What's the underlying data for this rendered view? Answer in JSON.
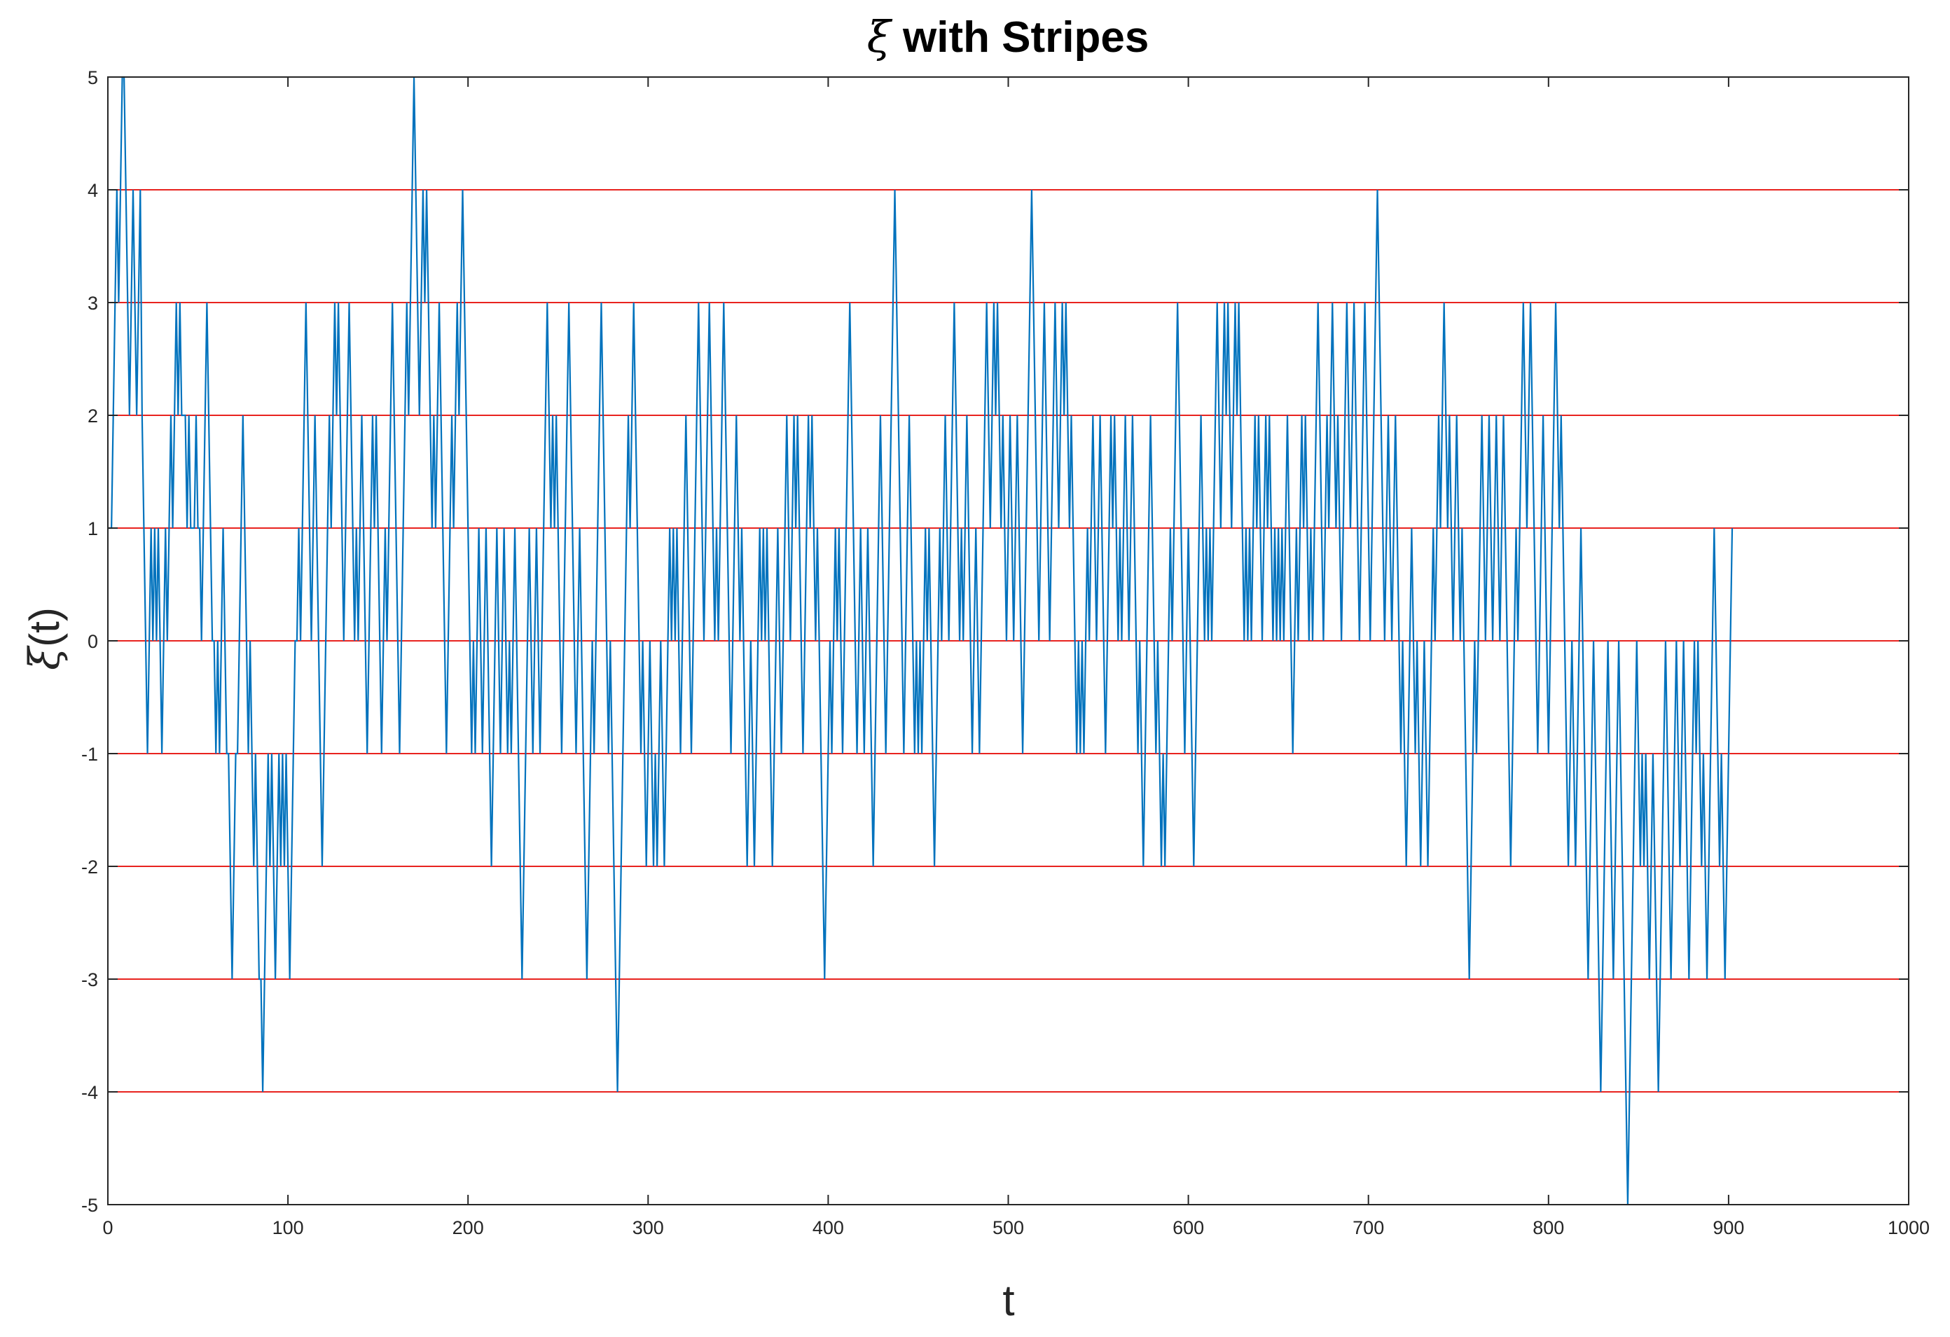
{
  "chart_data": {
    "type": "line",
    "title_symbol": "ξ",
    "title_rest": " with Stripes",
    "xlabel": "t",
    "ylabel_symbol": "ξ",
    "ylabel_rest": "(t)",
    "xlim": [
      0,
      1000
    ],
    "ylim": [
      -5,
      5
    ],
    "x_ticks": [
      0,
      100,
      200,
      300,
      400,
      500,
      600,
      700,
      800,
      900,
      1000
    ],
    "y_ticks": [
      -5,
      -4,
      -3,
      -2,
      -1,
      0,
      1,
      2,
      3,
      4,
      5
    ],
    "stripes": [
      -4,
      -3,
      -2,
      -1,
      0,
      1,
      2,
      3,
      4
    ],
    "stripe_color": "#e8231f",
    "line_color": "#0072bd",
    "series": [
      {
        "name": "ξ(t)",
        "x_start": 0,
        "x_step": 1,
        "values": [
          1,
          1,
          1,
          2,
          3,
          4,
          3,
          4,
          5,
          5,
          4,
          3,
          2,
          3,
          4,
          3,
          2,
          3,
          4,
          2,
          1,
          0,
          -1,
          0,
          1,
          0,
          1,
          0,
          1,
          0,
          -1,
          0,
          1,
          0,
          1,
          2,
          1,
          2,
          3,
          2,
          3,
          2,
          2,
          2,
          1,
          2,
          1,
          1,
          1,
          2,
          1,
          1,
          0,
          1,
          2,
          3,
          2,
          1,
          0,
          0,
          -1,
          0,
          -1,
          0,
          1,
          0,
          -1,
          -1,
          -2,
          -3,
          -2,
          -1,
          -1,
          0,
          1,
          2,
          1,
          0,
          -1,
          0,
          -1,
          -2,
          -1,
          -2,
          -3,
          -3,
          -4,
          -3,
          -2,
          -1,
          -2,
          -1,
          -2,
          -3,
          -2,
          -1,
          -2,
          -1,
          -2,
          -1,
          -2,
          -3,
          -2,
          -1,
          0,
          0,
          1,
          0,
          1,
          2,
          3,
          2,
          1,
          0,
          1,
          2,
          1,
          0,
          -1,
          -2,
          -1,
          0,
          1,
          2,
          1,
          2,
          3,
          2,
          3,
          2,
          1,
          0,
          1,
          2,
          3,
          2,
          1,
          0,
          1,
          0,
          1,
          2,
          1,
          0,
          -1,
          0,
          1,
          2,
          1,
          2,
          1,
          0,
          -1,
          0,
          1,
          0,
          1,
          2,
          3,
          2,
          1,
          0,
          -1,
          0,
          1,
          2,
          3,
          2,
          3,
          4,
          5,
          4,
          3,
          2,
          3,
          4,
          3,
          4,
          3,
          2,
          1,
          2,
          1,
          2,
          3,
          2,
          1,
          0,
          -1,
          0,
          1,
          2,
          1,
          2,
          3,
          2,
          3,
          4,
          3,
          2,
          1,
          0,
          -1,
          0,
          -1,
          0,
          1,
          0,
          -1,
          0,
          1,
          0,
          -1,
          -2,
          -1,
          0,
          1,
          0,
          -1,
          0,
          1,
          0,
          -1,
          0,
          -1,
          0,
          1,
          0,
          -1,
          -2,
          -3,
          -2,
          -1,
          0,
          1,
          0,
          -1,
          0,
          1,
          0,
          -1,
          0,
          1,
          2,
          3,
          2,
          1,
          2,
          1,
          2,
          1,
          0,
          -1,
          0,
          1,
          2,
          3,
          2,
          1,
          0,
          -1,
          0,
          1,
          0,
          -1,
          -2,
          -3,
          -2,
          -1,
          0,
          -1,
          0,
          1,
          2,
          3,
          2,
          1,
          0,
          -1,
          0,
          -1,
          -2,
          -3,
          -4,
          -3,
          -2,
          -1,
          0,
          1,
          2,
          1,
          2,
          3,
          2,
          1,
          0,
          -1,
          0,
          -1,
          -2,
          -1,
          0,
          -1,
          -2,
          -1,
          -2,
          -1,
          0,
          -1,
          -2,
          -1,
          0,
          1,
          0,
          1,
          0,
          1,
          0,
          -1,
          0,
          1,
          2,
          1,
          0,
          -1,
          0,
          1,
          2,
          3,
          2,
          1,
          0,
          1,
          2,
          3,
          2,
          1,
          0,
          1,
          0,
          1,
          2,
          3,
          2,
          1,
          0,
          -1,
          0,
          1,
          2,
          1,
          0,
          1,
          0,
          -1,
          -2,
          -1,
          0,
          -1,
          -2,
          -1,
          0,
          1,
          0,
          1,
          0,
          1,
          0,
          -1,
          -2,
          -1,
          0,
          1,
          0,
          -1,
          0,
          1,
          2,
          1,
          0,
          1,
          2,
          1,
          2,
          1,
          0,
          -1,
          0,
          1,
          2,
          1,
          2,
          1,
          0,
          1,
          0,
          -1,
          -2,
          -3,
          -2,
          -1,
          0,
          -1,
          0,
          1,
          0,
          1,
          0,
          -1,
          0,
          1,
          2,
          3,
          2,
          1,
          0,
          -1,
          0,
          1,
          0,
          -1,
          0,
          1,
          0,
          -1,
          -2,
          -1,
          0,
          1,
          2,
          1,
          0,
          -1,
          0,
          1,
          2,
          3,
          4,
          3,
          2,
          1,
          0,
          -1,
          0,
          1,
          2,
          1,
          0,
          -1,
          0,
          -1,
          0,
          -1,
          0,
          1,
          0,
          1,
          0,
          -1,
          -2,
          -1,
          0,
          1,
          0,
          1,
          2,
          1,
          0,
          1,
          2,
          3,
          2,
          1,
          0,
          1,
          0,
          1,
          2,
          1,
          0,
          -1,
          0,
          1,
          0,
          -1,
          0,
          1,
          2,
          3,
          2,
          1,
          2,
          3,
          2,
          3,
          2,
          1,
          2,
          1,
          0,
          1,
          2,
          1,
          0,
          1,
          2,
          1,
          0,
          -1,
          0,
          1,
          2,
          3,
          4,
          3,
          2,
          1,
          0,
          1,
          2,
          3,
          2,
          1,
          0,
          1,
          2,
          3,
          2,
          1,
          2,
          3,
          2,
          3,
          2,
          1,
          2,
          1,
          0,
          -1,
          0,
          -1,
          0,
          -1,
          0,
          1,
          0,
          1,
          2,
          1,
          0,
          1,
          2,
          1,
          0,
          -1,
          0,
          1,
          2,
          1,
          2,
          1,
          0,
          1,
          0,
          1,
          2,
          1,
          0,
          1,
          2,
          1,
          0,
          -1,
          0,
          -1,
          -2,
          -1,
          0,
          1,
          2,
          1,
          0,
          -1,
          0,
          -1,
          -2,
          -1,
          -2,
          -1,
          0,
          1,
          0,
          1,
          2,
          3,
          2,
          1,
          0,
          -1,
          0,
          1,
          0,
          -1,
          -2,
          -1,
          0,
          1,
          2,
          1,
          0,
          1,
          0,
          1,
          0,
          1,
          2,
          3,
          2,
          1,
          2,
          3,
          2,
          3,
          2,
          1,
          2,
          3,
          2,
          3,
          2,
          1,
          0,
          1,
          0,
          1,
          0,
          1,
          2,
          1,
          2,
          1,
          0,
          1,
          2,
          1,
          2,
          1,
          0,
          1,
          0,
          1,
          0,
          1,
          0,
          1,
          2,
          1,
          0,
          -1,
          0,
          1,
          0,
          1,
          2,
          1,
          2,
          1,
          0,
          1,
          0,
          1,
          2,
          3,
          2,
          1,
          0,
          1,
          2,
          1,
          2,
          3,
          2,
          1,
          2,
          1,
          0,
          1,
          2,
          3,
          2,
          1,
          2,
          3,
          2,
          1,
          0,
          1,
          2,
          3,
          2,
          1,
          0,
          1,
          2,
          3,
          4,
          3,
          2,
          1,
          0,
          1,
          2,
          1,
          0,
          1,
          2,
          1,
          0,
          -1,
          0,
          -1,
          -2,
          -1,
          0,
          1,
          0,
          -1,
          0,
          -1,
          -2,
          -1,
          0,
          -1,
          -2,
          -1,
          0,
          1,
          0,
          1,
          2,
          1,
          2,
          3,
          2,
          1,
          2,
          1,
          0,
          1,
          2,
          1,
          0,
          1,
          0,
          -1,
          -2,
          -3,
          -2,
          -1,
          0,
          -1,
          0,
          1,
          2,
          1,
          0,
          1,
          2,
          1,
          0,
          1,
          2,
          1,
          0,
          1,
          2,
          1,
          0,
          -1,
          -2,
          -1,
          0,
          1,
          0,
          1,
          2,
          3,
          2,
          1,
          2,
          3,
          2,
          1,
          0,
          -1,
          0,
          1,
          2,
          1,
          0,
          -1,
          0,
          1,
          2,
          3,
          2,
          1,
          2,
          1,
          0,
          -1,
          -2,
          -1,
          0,
          -1,
          -2,
          -1,
          0,
          1,
          0,
          -1,
          -2,
          -3,
          -2,
          -1,
          0,
          -1,
          -2,
          -3,
          -4,
          -3,
          -2,
          -1,
          0,
          -1,
          -2,
          -3,
          -2,
          -1,
          0,
          -1,
          -2,
          -3,
          -4,
          -5,
          -4,
          -3,
          -2,
          -1,
          0,
          -1,
          -2,
          -1,
          -2,
          -1,
          -2,
          -3,
          -2,
          -1,
          -2,
          -3,
          -4,
          -3,
          -2,
          -1,
          0,
          -1,
          -2,
          -3,
          -2,
          -1,
          0,
          -1,
          -2,
          -1,
          0,
          -1,
          -2,
          -3,
          -2,
          -1,
          0,
          -1,
          0,
          -1,
          -2,
          -1,
          -2,
          -3,
          -2,
          -1,
          0,
          1,
          0,
          -1,
          -2,
          -1,
          -2,
          -3,
          -2,
          -1,
          0,
          1
        ]
      }
    ]
  }
}
